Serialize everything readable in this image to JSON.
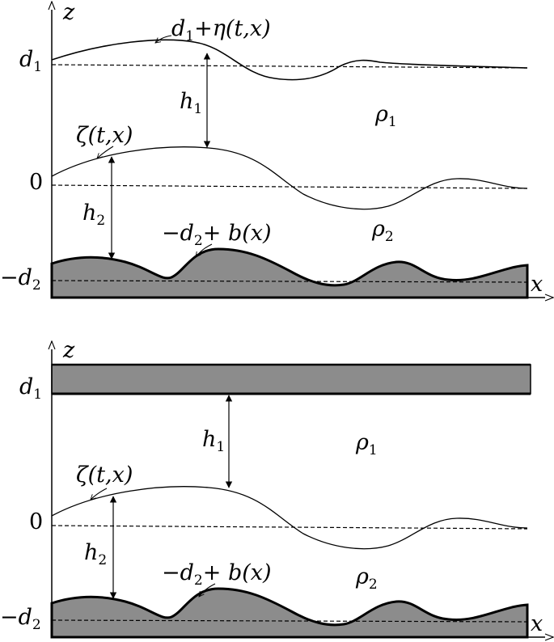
{
  "colors": {
    "fluid_fill": "#8c8c8c",
    "ink": "#000000",
    "background": "#ffffff"
  },
  "top_panel": {
    "axis_z": {
      "letter": "z"
    },
    "axis_x": {
      "letter": "x"
    },
    "tick_d1": {
      "base": "d",
      "sub": "1"
    },
    "tick_zero": "0",
    "tick_minus_d2": {
      "prefix": "−",
      "base": "d",
      "sub": "2"
    },
    "free_surface_label": {
      "base": "d",
      "sub": "1",
      "rest": "+η(t,x)"
    },
    "interface_label": "ζ(t,x)",
    "bottom_label": {
      "prefix": "−",
      "base": "d",
      "sub": "2",
      "rest": "+ b(x)"
    },
    "h1": {
      "base": "h",
      "sub": "1"
    },
    "h2": {
      "base": "h",
      "sub": "2"
    },
    "rho1": {
      "base": "ρ",
      "sub": "1"
    },
    "rho2": {
      "base": "ρ",
      "sub": "2"
    }
  },
  "bottom_panel": {
    "axis_z": {
      "letter": "z"
    },
    "axis_x": {
      "letter": "x"
    },
    "tick_d1": {
      "base": "d",
      "sub": "1"
    },
    "tick_zero": "0",
    "tick_minus_d2": {
      "prefix": "−",
      "base": "d",
      "sub": "2"
    },
    "interface_label": "ζ(t,x)",
    "bottom_label": {
      "prefix": "−",
      "base": "d",
      "sub": "2",
      "rest": "+ b(x)"
    },
    "h1": {
      "base": "h",
      "sub": "1"
    },
    "h2": {
      "base": "h",
      "sub": "2"
    },
    "rho1": {
      "base": "ρ",
      "sub": "1"
    },
    "rho2": {
      "base": "ρ",
      "sub": "2"
    }
  }
}
